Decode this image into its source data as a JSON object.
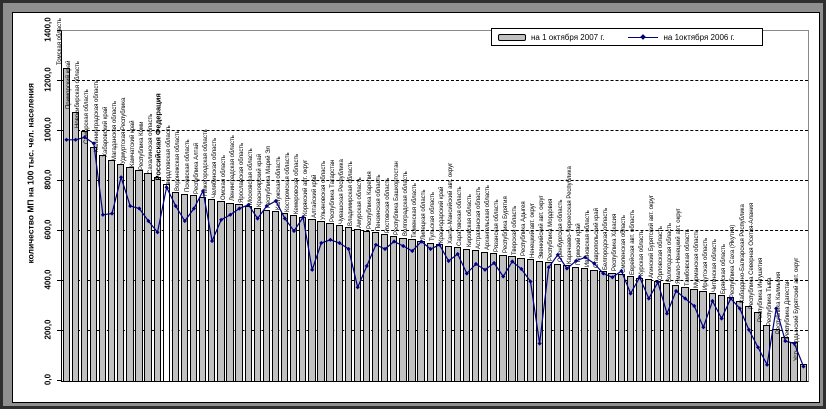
{
  "colors": {
    "bar_fill": "#c0c0c0",
    "bar_highlight_fill": "#ffffff",
    "line_color": "#000080",
    "plot_border": "#8a8a8a",
    "frame": "#8f8f8f"
  },
  "chart_data": {
    "type": "bar",
    "title": "",
    "xlabel": "",
    "ylabel": "количество МП на 100 тыс. чел. населения",
    "ylim": [
      0,
      1400
    ],
    "ytick_step": 200,
    "ytick_labels": [
      "0,0",
      "200,0",
      "400,0",
      "600,0",
      "800,0",
      "1000,0",
      "1200,0",
      "1400,0"
    ],
    "grid": "horizontal-dashed",
    "legend_position": "top-right",
    "highlight_category": "Российская Федерация",
    "categories": [
      "Томская область",
      "Приморский край",
      "Новосибирская область",
      "Самарская область",
      "Калининградская область",
      "Хабаровский край",
      "Магаданская область",
      "Удмуртская Республика",
      "Камчатский край",
      "Республика Коми",
      "Сахалинская область",
      "Российская Федерация",
      "Свердловская область",
      "Воронежская область",
      "Псковская область",
      "Республика Алтай",
      "Нижегородская область",
      "Челябинская область",
      "Омская область",
      "Ленинградская область",
      "Ярославская область",
      "Московская область",
      "Красноярский край",
      "Республика Марий Эл",
      "Калужская область",
      "Костромская область",
      "Кемеровская область",
      "Корякский авт. округ",
      "Алтайский край",
      "Ульяновская область",
      "Республика Татарстан",
      "Чувашская Республика",
      "Владимирская область",
      "Амурская область",
      "Республика Карелия",
      "Пензенская область",
      "Ростовская область",
      "Республика Башкортостан",
      "Волгоградская область",
      "Тюменская область",
      "Липецкая область",
      "Тульская область",
      "Краснодарский край",
      "Ханты-Мансийский авт. округ",
      "Саратовская область",
      "Кировская область",
      "Астраханская область",
      "Архангельская область",
      "Рязанская область",
      "Республика Бурятия",
      "Тверская область",
      "Республика Адыгея",
      "Ненецкий авт. округ",
      "Эвенкийский авт. округ",
      "Республика Мордовия",
      "Оренбургская область",
      "Карачаево-Черкесская Республика",
      "Пермский край",
      "Ивановская область",
      "Ставропольский край",
      "Белгородская область",
      "Республика Хакасия",
      "Смоленская область",
      "Еврейская авт. область",
      "Курская область",
      "Агинский Бурятский авт. округ",
      "Орловская область",
      "Вологодская область",
      "Ямало-Ненецкий авт. округ",
      "Тамбовская область",
      "Мурманская область",
      "Иркутская область",
      "Читинская область",
      "Брянская область",
      "Республика Саха (Якутия)",
      "Кабардино-Балкарская Республика",
      "Республика Северная Осетия-Алания",
      "Республика Ингушетия",
      "Республика Тыва",
      "Республика Калмыкия",
      "Республика Дагестан",
      "Усть-Ордынский Бурятский авт. округ"
    ],
    "series": [
      {
        "name": "на 1 октября 2007 г.",
        "type": "bar",
        "color": "#c0c0c0",
        "values": [
          1253,
          1075,
          1000,
          935,
          905,
          885,
          868,
          856,
          844,
          832,
          816,
          790,
          756,
          750,
          744,
          738,
          730,
          722,
          714,
          707,
          700,
          693,
          686,
          679,
          672,
          665,
          658,
          650,
          642,
          634,
          626,
          618,
          610,
          602,
          595,
          588,
          581,
          574,
          567,
          560,
          554,
          548,
          542,
          536,
          530,
          524,
          518,
          512,
          506,
          500,
          494,
          488,
          482,
          476,
          470,
          464,
          458,
          452,
          446,
          440,
          434,
          428,
          421,
          414,
          407,
          400,
          393,
          386,
          378,
          370,
          362,
          354,
          345,
          335,
          322,
          300,
          275,
          225,
          210,
          175,
          158,
          68
        ]
      },
      {
        "name": "на 1октября 2006 г.",
        "type": "line",
        "color": "#000080",
        "marker": "diamond",
        "values": [
          965,
          965,
          975,
          950,
          665,
          670,
          815,
          700,
          690,
          640,
          595,
          775,
          700,
          640,
          690,
          760,
          560,
          645,
          665,
          690,
          705,
          650,
          700,
          720,
          650,
          600,
          655,
          445,
          552,
          565,
          552,
          528,
          375,
          460,
          545,
          528,
          558,
          540,
          520,
          558,
          528,
          545,
          480,
          508,
          430,
          468,
          445,
          472,
          418,
          478,
          448,
          398,
          150,
          455,
          505,
          450,
          480,
          495,
          470,
          430,
          415,
          440,
          350,
          415,
          330,
          395,
          270,
          360,
          330,
          300,
          215,
          320,
          250,
          330,
          290,
          205,
          135,
          65,
          290,
          160,
          150,
          58
        ]
      }
    ]
  }
}
